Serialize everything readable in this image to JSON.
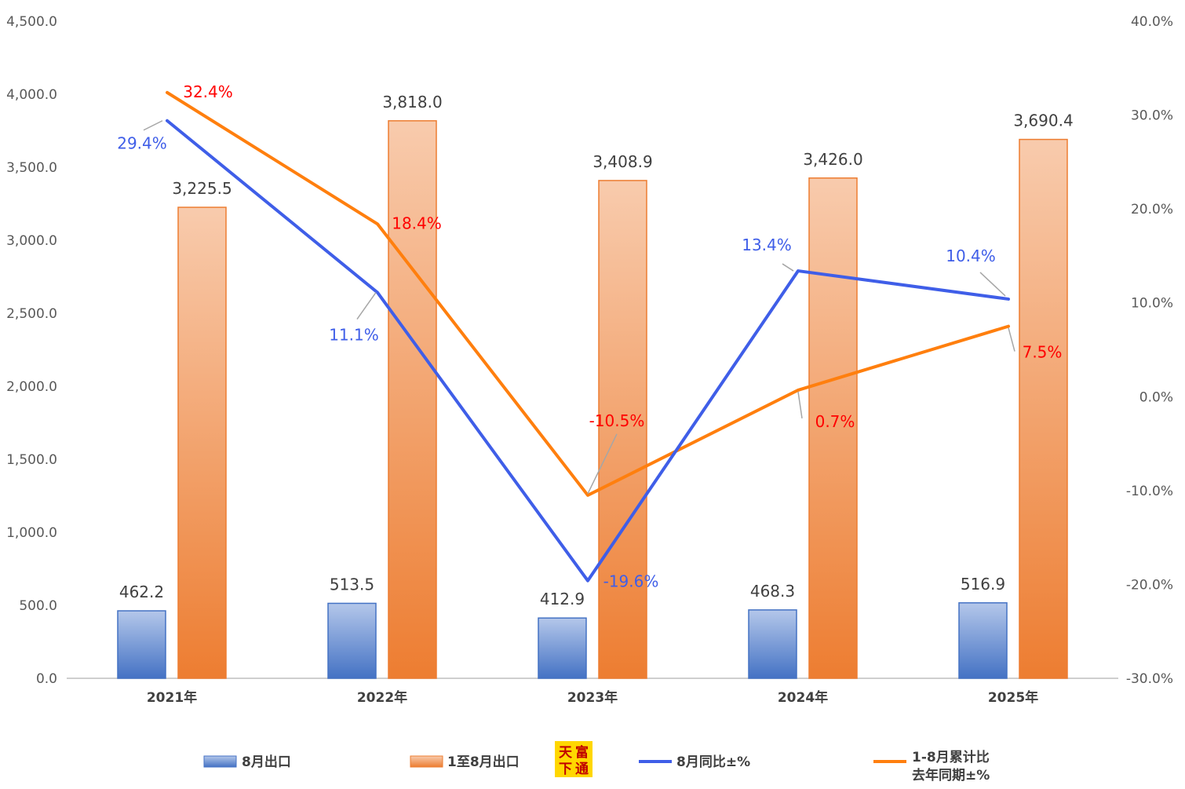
{
  "chart_data": {
    "type": "bar",
    "categories": [
      "2021年",
      "2022年",
      "2023年",
      "2024年",
      "2025年"
    ],
    "y_left": {
      "ylim": [
        0,
        4500
      ],
      "ticks": [
        "0.0",
        "500.0",
        "1,000.0",
        "1,500.0",
        "2,000.0",
        "2,500.0",
        "3,000.0",
        "3,500.0",
        "4,000.0",
        "4,500.0"
      ]
    },
    "y_right": {
      "ylim": [
        -30,
        40
      ],
      "ticks": [
        "-30.0%",
        "-20.0%",
        "-10.0%",
        "0.0%",
        "10.0%",
        "20.0%",
        "30.0%",
        "40.0%"
      ]
    },
    "series": [
      {
        "name": "8月出口",
        "kind": "bar",
        "axis": "left",
        "color_top": "#b4c7ea",
        "color_bottom": "#4472c4",
        "values": [
          462.2,
          513.5,
          412.9,
          468.3,
          516.9
        ],
        "labels": [
          "462.2",
          "513.5",
          "412.9",
          "468.3",
          "516.9"
        ]
      },
      {
        "name": "1至8月出口",
        "kind": "bar",
        "axis": "left",
        "color_top": "#f8cbad",
        "color_bottom": "#ed7d31",
        "values": [
          3225.5,
          3818.0,
          3408.9,
          3426.0,
          3690.4
        ],
        "labels": [
          "3,225.5",
          "3,818.0",
          "3,408.9",
          "3,426.0",
          "3,690.4"
        ]
      },
      {
        "name": "8月同比±%",
        "kind": "line",
        "axis": "right",
        "color": "#3f5ee8",
        "label_color": "#3f5ee8",
        "values": [
          29.4,
          11.1,
          -19.6,
          13.4,
          10.4
        ],
        "labels": [
          "29.4%",
          "11.1%",
          "-19.6%",
          "13.4%",
          "10.4%"
        ]
      },
      {
        "name": "1-8月累计比\n去年同期±%",
        "kind": "line",
        "axis": "right",
        "color": "#ff7f0e",
        "label_color": "#ff0000",
        "values": [
          32.4,
          18.4,
          -10.5,
          0.7,
          7.5
        ],
        "labels": [
          "32.4%",
          "18.4%",
          "-10.5%",
          "0.7%",
          "7.5%"
        ]
      }
    ],
    "legend_position": "bottom",
    "grid": false
  },
  "logo": {
    "chars": [
      "天",
      "富",
      "下",
      "通"
    ],
    "bg": "#ffd700",
    "fg": "#c00000"
  }
}
